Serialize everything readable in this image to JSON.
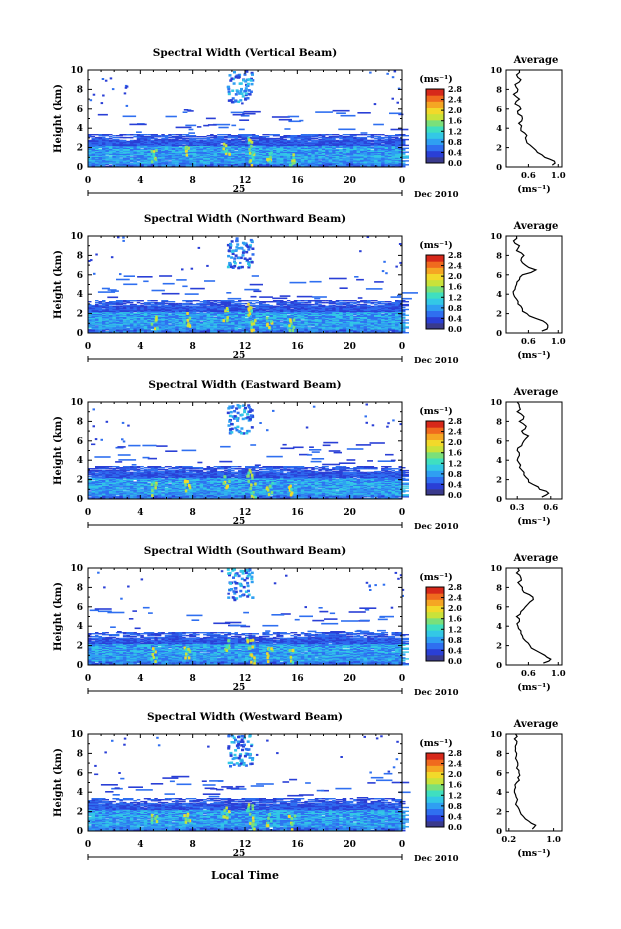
{
  "common": {
    "ylabel": "Height (km)",
    "unit_label": "(ms⁻¹)",
    "avg_title": "Average",
    "avg_xlabel": "(ms⁻¹)",
    "x_ticks": [
      "0",
      "4",
      "8",
      "12",
      "16",
      "20",
      "0"
    ],
    "y_ticks": [
      "0",
      "2",
      "4",
      "6",
      "8",
      "10"
    ],
    "day_label": "25",
    "date_label": "Dec 2010",
    "xlabel": "Local Time",
    "cb_ticks": [
      "0.0",
      "0.4",
      "0.8",
      "1.2",
      "1.6",
      "2.0",
      "2.4",
      "2.8"
    ],
    "colors": [
      "#3a3a8c",
      "#2a3fd6",
      "#2f6ff0",
      "#2f9ff2",
      "#33c8e6",
      "#3fdfc0",
      "#7ae07a",
      "#c9e23a",
      "#f2d92a",
      "#f5a623",
      "#f06a1e",
      "#d7281a"
    ]
  },
  "chart_data": [
    {
      "type": "heatmap",
      "title": "Spectral Width (Vertical Beam)",
      "xlim": [
        0,
        24
      ],
      "ylim": [
        0,
        10
      ],
      "clim": [
        0,
        2.8
      ],
      "avg_xticks": [
        "0.6",
        "1.0"
      ],
      "avg_xlim": [
        0.3,
        1.05
      ],
      "avg_profile": {
        "height": [
          0.2,
          0.6,
          1.0,
          1.5,
          2.0,
          2.5,
          3.0,
          3.5,
          4.0,
          4.5,
          5.0,
          5.5,
          6.0,
          6.5,
          7.0,
          7.5,
          8.0,
          8.5,
          9.0,
          9.5,
          10.0
        ],
        "value": [
          0.92,
          0.95,
          0.82,
          0.72,
          0.66,
          0.58,
          0.56,
          0.55,
          0.5,
          0.47,
          0.52,
          0.46,
          0.5,
          0.42,
          0.48,
          0.4,
          0.46,
          0.42,
          0.5,
          0.44,
          0.48
        ]
      }
    },
    {
      "type": "heatmap",
      "title": "Spectral Width (Northward Beam)",
      "xlim": [
        0,
        24
      ],
      "ylim": [
        0,
        10
      ],
      "clim": [
        0,
        2.8
      ],
      "avg_xticks": [
        "0.6",
        "1.0"
      ],
      "avg_xlim": [
        0.3,
        1.05
      ],
      "avg_profile": {
        "height": [
          0.2,
          0.6,
          1.0,
          1.5,
          2.0,
          2.5,
          3.0,
          3.5,
          4.0,
          4.5,
          5.0,
          5.5,
          6.0,
          6.5,
          7.0,
          7.5,
          8.0,
          8.5,
          9.0,
          9.5,
          10.0
        ],
        "value": [
          0.78,
          0.86,
          0.84,
          0.7,
          0.58,
          0.52,
          0.46,
          0.44,
          0.4,
          0.42,
          0.44,
          0.48,
          0.52,
          0.7,
          0.56,
          0.5,
          0.54,
          0.44,
          0.48,
          0.4,
          0.44
        ]
      }
    },
    {
      "type": "heatmap",
      "title": "Spectral Width (Eastward Beam)",
      "xlim": [
        0,
        24
      ],
      "ylim": [
        0,
        10
      ],
      "clim": [
        0,
        2.8
      ],
      "avg_xticks": [
        "0.3",
        "0.6"
      ],
      "avg_xlim": [
        0.2,
        0.7
      ],
      "avg_profile": {
        "height": [
          0.2,
          0.6,
          1.0,
          1.5,
          2.0,
          2.5,
          3.0,
          3.5,
          4.0,
          4.5,
          5.0,
          5.5,
          6.0,
          6.5,
          7.0,
          7.5,
          8.0,
          8.5,
          9.0,
          9.5,
          10.0
        ],
        "value": [
          0.52,
          0.58,
          0.5,
          0.44,
          0.4,
          0.36,
          0.34,
          0.33,
          0.3,
          0.32,
          0.3,
          0.34,
          0.36,
          0.4,
          0.34,
          0.38,
          0.32,
          0.36,
          0.3,
          0.32,
          0.3
        ]
      }
    },
    {
      "type": "heatmap",
      "title": "Spectral Width (Southward Beam)",
      "xlim": [
        0,
        24
      ],
      "ylim": [
        0,
        10
      ],
      "clim": [
        0,
        2.8
      ],
      "avg_xticks": [
        "0.6",
        "1.0"
      ],
      "avg_xlim": [
        0.3,
        1.05
      ],
      "avg_profile": {
        "height": [
          0.2,
          0.6,
          1.0,
          1.5,
          2.0,
          2.5,
          3.0,
          3.5,
          4.0,
          4.5,
          5.0,
          5.5,
          6.0,
          6.5,
          7.0,
          7.5,
          8.0,
          8.5,
          9.0,
          9.5,
          10.0
        ],
        "value": [
          0.8,
          0.9,
          0.82,
          0.7,
          0.62,
          0.56,
          0.52,
          0.5,
          0.46,
          0.48,
          0.44,
          0.5,
          0.56,
          0.62,
          0.66,
          0.54,
          0.52,
          0.46,
          0.5,
          0.44,
          0.46
        ]
      }
    },
    {
      "type": "heatmap",
      "title": "Spectral Width (Westward Beam)",
      "xlim": [
        0,
        24
      ],
      "ylim": [
        0,
        10
      ],
      "clim": [
        0,
        2.8
      ],
      "avg_xticks": [
        "0.2",
        "1.0"
      ],
      "avg_xlim": [
        0.15,
        1.15
      ],
      "avg_profile": {
        "height": [
          0.2,
          0.6,
          1.0,
          1.5,
          2.0,
          2.5,
          3.0,
          3.5,
          4.0,
          4.5,
          5.0,
          5.5,
          6.0,
          6.5,
          7.0,
          7.5,
          8.0,
          8.5,
          9.0,
          9.5,
          10.0
        ],
        "value": [
          0.62,
          0.68,
          0.56,
          0.46,
          0.4,
          0.36,
          0.34,
          0.33,
          0.3,
          0.32,
          0.34,
          0.36,
          0.38,
          0.34,
          0.36,
          0.32,
          0.34,
          0.32,
          0.34,
          0.3,
          0.32
        ]
      }
    }
  ]
}
